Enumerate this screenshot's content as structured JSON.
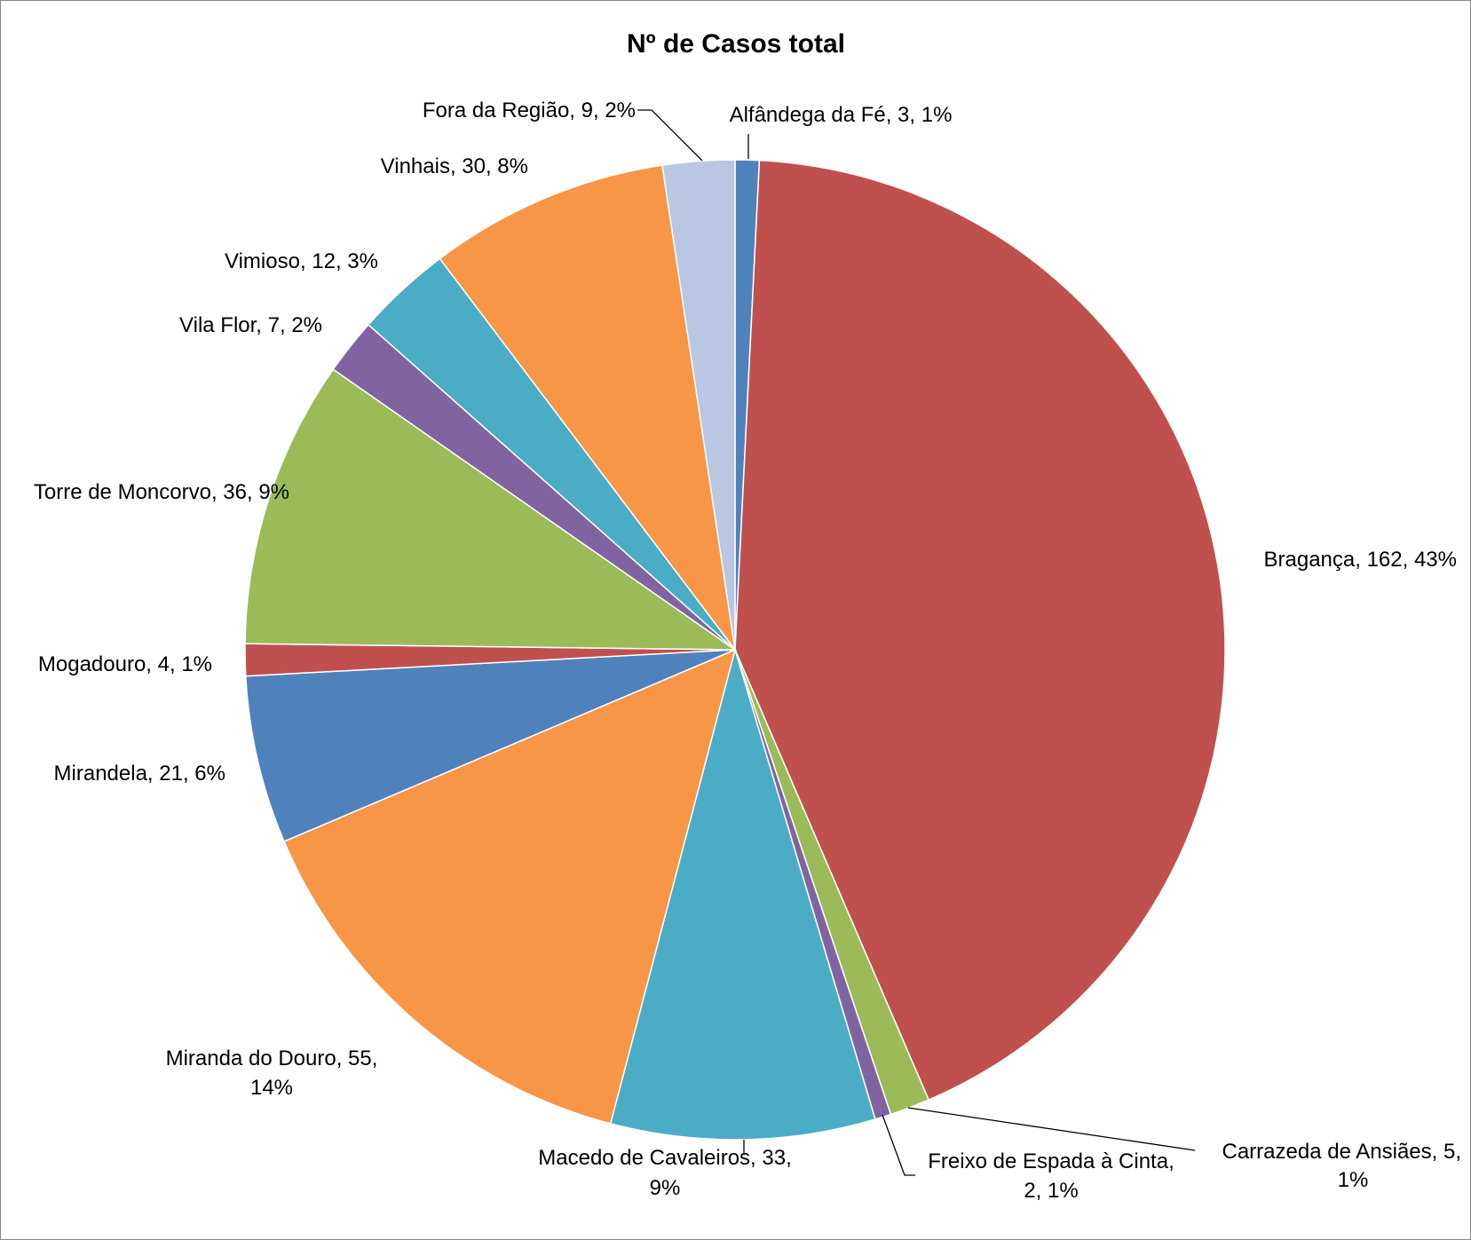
{
  "chart_data": {
    "type": "pie",
    "title": "Nº de Casos total",
    "legend": "none",
    "slices": [
      {
        "label": "Alfândega da Fé",
        "value": 3,
        "percent": "1%",
        "color": "#4F81BD"
      },
      {
        "label": "Bragança",
        "value": 162,
        "percent": "43%",
        "color": "#C0504D"
      },
      {
        "label": "Carrazeda de Ansiães",
        "value": 5,
        "percent": "1%",
        "color": "#9BBB59"
      },
      {
        "label": "Freixo de Espada à Cinta",
        "value": 2,
        "percent": "1%",
        "color": "#8064A2"
      },
      {
        "label": "Macedo de Cavaleiros",
        "value": 33,
        "percent": "9%",
        "color": "#4BACC6"
      },
      {
        "label": "Miranda do Douro",
        "value": 55,
        "percent": "14%",
        "color": "#F79646"
      },
      {
        "label": "Mirandela",
        "value": 21,
        "percent": "6%",
        "color": "#4F81BD"
      },
      {
        "label": "Mogadouro",
        "value": 4,
        "percent": "1%",
        "color": "#C0504D"
      },
      {
        "label": "Torre de Moncorvo",
        "value": 36,
        "percent": "9%",
        "color": "#9BBB59"
      },
      {
        "label": "Vila Flor",
        "value": 7,
        "percent": "2%",
        "color": "#8064A2"
      },
      {
        "label": "Vimioso",
        "value": 12,
        "percent": "3%",
        "color": "#4BACC6"
      },
      {
        "label": "Vinhais",
        "value": 30,
        "percent": "8%",
        "color": "#F79646"
      },
      {
        "label": "Fora da Região",
        "value": 9,
        "percent": "2%",
        "color": "#B9C7E2"
      }
    ]
  }
}
